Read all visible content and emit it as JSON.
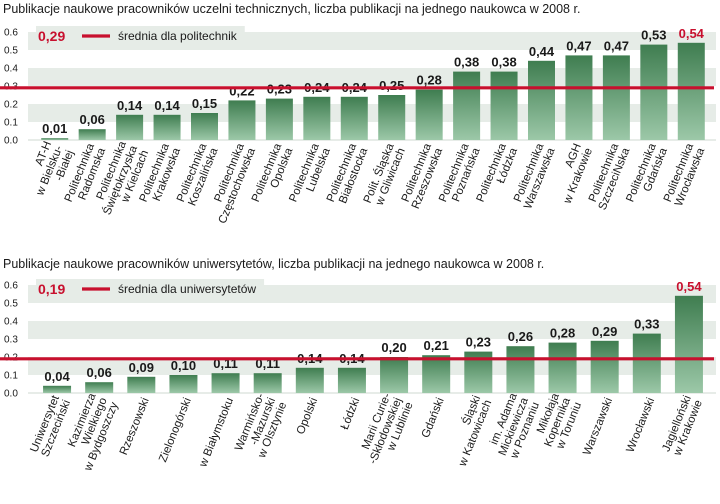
{
  "colors": {
    "bar_dark": "#3f7d50",
    "bar_light": "#9cc8a8",
    "band": "#e6ece7",
    "avg_line": "#c8102e",
    "highlight_text": "#c8102e"
  },
  "chart_data": [
    {
      "type": "bar",
      "title": "Publikacje naukowe pracowników uczelni technicznych, liczba publikacji na jednego naukowca w 2008 r.",
      "yticks": [
        "0.6",
        "0.5",
        "0.4",
        "0.3",
        "0.2",
        "0.1",
        "0.0"
      ],
      "ylim": [
        0,
        0.6
      ],
      "categories": [
        [
          "AT-H",
          "w Bielsku-",
          "-Białej"
        ],
        [
          "Politechnika",
          "Radomska"
        ],
        [
          "Politechnika",
          "Świętokrzyska",
          "w Kielcach"
        ],
        [
          "Politechnika",
          "Krakowska"
        ],
        [
          "Politechnika",
          "Koszalińska"
        ],
        [
          "Politechnika",
          "Częstochowska"
        ],
        [
          "Politechnika",
          "Opolska"
        ],
        [
          "Politechnika",
          "Lubelska"
        ],
        [
          "Politechnika",
          "Białostocka"
        ],
        [
          "Polit. Śląska",
          "w Gliwicach"
        ],
        [
          "Politechnika",
          "Rzeszowska"
        ],
        [
          "Politechnika",
          "Poznańska"
        ],
        [
          "Politechnika",
          "Łódzka"
        ],
        [
          "Politechnika",
          "Warszawska"
        ],
        [
          "AGH",
          "w Krakowie"
        ],
        [
          "Politechnika",
          "SzczeciNska"
        ],
        [
          "Politechnika",
          "Gdańska"
        ],
        [
          "Politechnika",
          "Wrocławska"
        ]
      ],
      "values": [
        0.01,
        0.06,
        0.14,
        0.14,
        0.15,
        0.22,
        0.23,
        0.24,
        0.24,
        0.25,
        0.28,
        0.38,
        0.38,
        0.44,
        0.47,
        0.47,
        0.53,
        0.54
      ],
      "value_labels": [
        "0,01",
        "0,06",
        "0,14",
        "0,14",
        "0,15",
        "0,22",
        "0,23",
        "0,24",
        "0,24",
        "0,25",
        "0,28",
        "0,38",
        "0,38",
        "0,44",
        "0,47",
        "0,47",
        "0,53",
        "0,54"
      ],
      "highlight_index": 17,
      "average": {
        "value": 0.29,
        "label": "0,29",
        "text": "średnia dla politechnik"
      }
    },
    {
      "type": "bar",
      "title": "Publikacje naukowe pracowników uniwersytetów, liczba publikacji na jednego naukowca w 2008 r.",
      "yticks": [
        "0.6",
        "0.5",
        "0.4",
        "0.3",
        "0.2",
        "0.1",
        "0.0"
      ],
      "ylim": [
        0,
        0.6
      ],
      "categories": [
        [
          "Uniwersytet",
          "Szczeciński"
        ],
        [
          "Kazimierza",
          "Wielkiego",
          "w Bydgoszczy"
        ],
        [
          "Rzeszowski"
        ],
        [
          "Zielonogórski"
        ],
        [
          "w Białymstoku"
        ],
        [
          "Warmińsko-",
          "-Mazurski",
          "w Olsztynie"
        ],
        [
          "Opolski"
        ],
        [
          "Łódzki"
        ],
        [
          "Marii Curie-",
          "-Skłodowskiej",
          "w Lublinie"
        ],
        [
          "Gdański"
        ],
        [
          "Śląski",
          "w Katowicach"
        ],
        [
          "im. Adama",
          "Mickiewicza",
          "w Poznaniu"
        ],
        [
          "Mikołaja",
          "Kopernika",
          "w Toruniu"
        ],
        [
          "Warszawski"
        ],
        [
          "Wrocławski"
        ],
        [
          "Jagielloński",
          "w Krakowie"
        ]
      ],
      "values": [
        0.04,
        0.06,
        0.09,
        0.1,
        0.11,
        0.11,
        0.14,
        0.14,
        0.2,
        0.21,
        0.23,
        0.26,
        0.28,
        0.29,
        0.33,
        0.54
      ],
      "value_labels": [
        "0,04",
        "0,06",
        "0,09",
        "0,10",
        "0,11",
        "0,11",
        "0,14",
        "0,14",
        "0,20",
        "0,21",
        "0,23",
        "0,26",
        "0,28",
        "0,29",
        "0,33",
        "0,54"
      ],
      "highlight_index": 15,
      "average": {
        "value": 0.19,
        "label": "0,19",
        "text": "średnia dla uniwersytetów"
      }
    }
  ]
}
